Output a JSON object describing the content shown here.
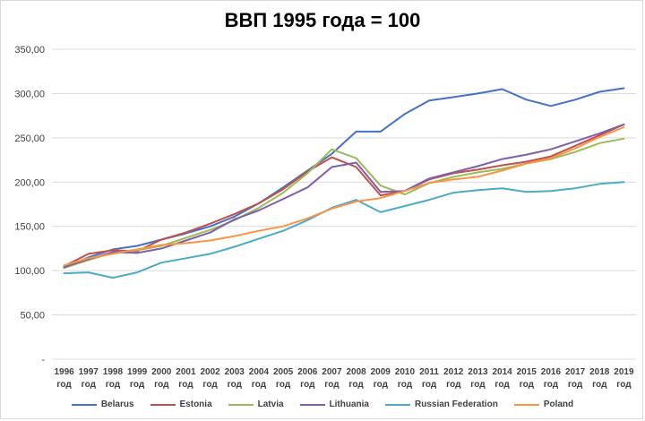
{
  "chart_data": {
    "type": "line",
    "title": "ВВП 1995 года = 100",
    "xlabel": "",
    "ylabel": "",
    "ylim": [
      0,
      350
    ],
    "y_ticks": [
      0,
      50,
      100,
      150,
      200,
      250,
      300,
      350
    ],
    "y_tick_labels": [
      "-",
      "50,00",
      "100,00",
      "150,00",
      "200,00",
      "250,00",
      "300,00",
      "350,00"
    ],
    "grid": true,
    "legend_position": "bottom",
    "categories": [
      "1996",
      "1997",
      "1998",
      "1999",
      "2000",
      "2001",
      "2002",
      "2003",
      "2004",
      "2005",
      "2006",
      "2007",
      "2008",
      "2009",
      "2010",
      "2011",
      "2012",
      "2013",
      "2014",
      "2015",
      "2016",
      "2017",
      "2018",
      "2019"
    ],
    "category_suffix": "год",
    "series": [
      {
        "name": "Belarus",
        "color": "#4472c4",
        "values": [
          103,
          115,
          124,
          128,
          135,
          142,
          150,
          161,
          176,
          194,
          213,
          232,
          257,
          257,
          277,
          292,
          296,
          300,
          305,
          293,
          286,
          293,
          302,
          306
        ]
      },
      {
        "name": "Estonia",
        "color": "#c0504d",
        "values": [
          105,
          119,
          123,
          122,
          135,
          143,
          153,
          164,
          176,
          192,
          212,
          228,
          217,
          185,
          190,
          203,
          210,
          214,
          219,
          223,
          229,
          241,
          253,
          265
        ]
      },
      {
        "name": "Latvia",
        "color": "#9bbb59",
        "values": [
          103,
          112,
          120,
          123,
          128,
          137,
          146,
          157,
          171,
          188,
          210,
          237,
          227,
          196,
          186,
          199,
          206,
          211,
          215,
          221,
          226,
          234,
          244,
          249
        ]
      },
      {
        "name": "Lithuania",
        "color": "#7f5fa8",
        "values": [
          104,
          113,
          121,
          120,
          125,
          134,
          143,
          158,
          168,
          181,
          194,
          217,
          222,
          189,
          190,
          204,
          211,
          218,
          226,
          231,
          237,
          246,
          255,
          265
        ]
      },
      {
        "name": "Russian Federation",
        "color": "#4bacc6",
        "values": [
          97,
          98,
          92,
          98,
          109,
          114,
          119,
          127,
          136,
          145,
          157,
          171,
          180,
          166,
          173,
          180,
          188,
          191,
          193,
          189,
          190,
          193,
          198,
          200
        ]
      },
      {
        "name": "Poland",
        "color": "#f79646",
        "values": [
          106,
          114,
          119,
          124,
          129,
          131,
          134,
          139,
          145,
          150,
          159,
          170,
          178,
          182,
          190,
          199,
          203,
          206,
          213,
          221,
          227,
          238,
          251,
          262
        ]
      }
    ]
  }
}
